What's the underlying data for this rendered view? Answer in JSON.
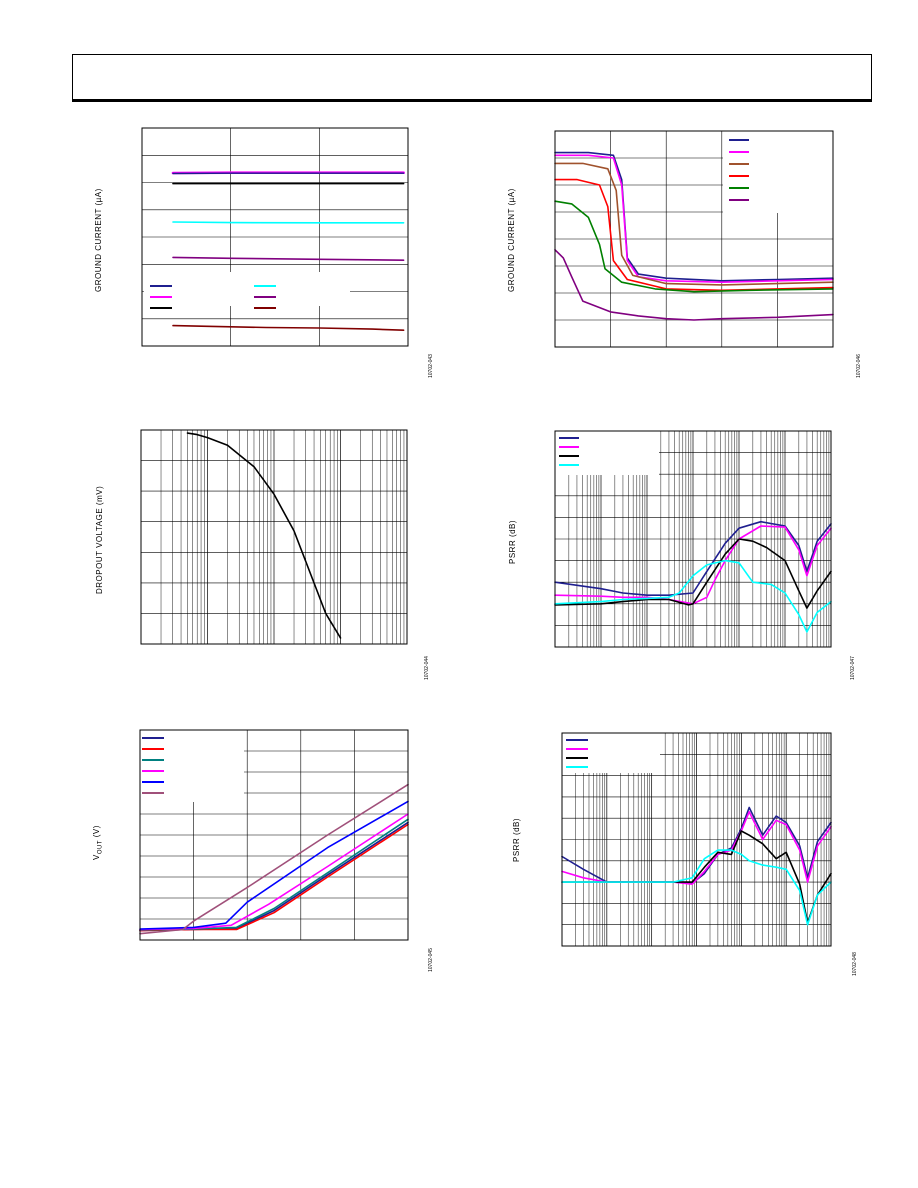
{
  "page": {
    "header_text": ""
  },
  "chart_data": [
    {
      "id": "c1",
      "type": "line",
      "ylabel": "GROUND CURRENT (µA)",
      "figure_id": "10702-043",
      "grid": true,
      "x_scale": "linear",
      "y_scale": "linear",
      "xlim": [
        0,
        3
      ],
      "ylim": [
        0,
        8
      ],
      "x_divisions": 3,
      "y_divisions": 8,
      "legend": {
        "placement": "lower-left",
        "columns": 2,
        "entries": [
          {
            "color": "#1f1f8f"
          },
          {
            "color": "#ff00ff"
          },
          {
            "color": "#000000"
          },
          {
            "color": "#00ffff"
          },
          {
            "color": "#800080"
          },
          {
            "color": "#800000"
          }
        ]
      },
      "series": [
        {
          "color": "#ff00ff",
          "width": 2.6,
          "x": [
            0.35,
            1.0,
            2.0,
            2.95
          ],
          "y": [
            6.35,
            6.36,
            6.36,
            6.36
          ]
        },
        {
          "color": "#1f1f8f",
          "width": 1.4,
          "x": [
            0.35,
            1.0,
            2.0,
            2.95
          ],
          "y": [
            6.33,
            6.34,
            6.34,
            6.34
          ]
        },
        {
          "color": "#000000",
          "width": 1.6,
          "x": [
            0.35,
            1.0,
            2.0,
            2.95
          ],
          "y": [
            5.96,
            5.96,
            5.96,
            5.96
          ]
        },
        {
          "color": "#00ffff",
          "width": 1.6,
          "x": [
            0.35,
            1.0,
            2.0,
            2.95
          ],
          "y": [
            4.55,
            4.53,
            4.52,
            4.52
          ]
        },
        {
          "color": "#800080",
          "width": 1.6,
          "x": [
            0.35,
            1.0,
            2.0,
            2.95
          ],
          "y": [
            3.25,
            3.22,
            3.18,
            3.15
          ]
        },
        {
          "color": "#800000",
          "width": 1.6,
          "x": [
            0.35,
            0.8,
            1.4,
            2.0,
            2.6,
            2.95
          ],
          "y": [
            0.75,
            0.72,
            0.68,
            0.66,
            0.62,
            0.58
          ]
        }
      ]
    },
    {
      "id": "c2",
      "type": "line",
      "ylabel": "GROUND CURRENT (µA)",
      "figure_id": "10702-046",
      "grid": true,
      "x_scale": "linear",
      "y_scale": "linear",
      "xlim": [
        0,
        5
      ],
      "ylim": [
        0,
        8
      ],
      "x_divisions": 5,
      "y_divisions": 8,
      "legend": {
        "placement": "top-right",
        "columns": 1,
        "entries": [
          {
            "color": "#1f1f8f"
          },
          {
            "color": "#ff00ff"
          },
          {
            "color": "#a0522d"
          },
          {
            "color": "#ff0000"
          },
          {
            "color": "#008000"
          },
          {
            "color": "#800080"
          }
        ]
      },
      "series": [
        {
          "color": "#1f1f8f",
          "width": 1.6,
          "x": [
            0,
            0.6,
            1.05,
            1.2,
            1.3,
            1.5,
            2.0,
            3.0,
            4.0,
            5.0
          ],
          "y": [
            7.2,
            7.2,
            7.1,
            6.2,
            3.3,
            2.7,
            2.55,
            2.45,
            2.5,
            2.55
          ]
        },
        {
          "color": "#ff00ff",
          "width": 1.6,
          "x": [
            0,
            0.6,
            1.05,
            1.2,
            1.3,
            1.5,
            2.0,
            3.0,
            4.0,
            5.0
          ],
          "y": [
            7.1,
            7.1,
            7.0,
            6.0,
            3.2,
            2.6,
            2.45,
            2.4,
            2.45,
            2.5
          ]
        },
        {
          "color": "#a0522d",
          "width": 1.6,
          "x": [
            0,
            0.5,
            0.95,
            1.1,
            1.2,
            1.4,
            2.0,
            3.0,
            4.0,
            5.0
          ],
          "y": [
            6.8,
            6.8,
            6.6,
            5.8,
            3.4,
            2.65,
            2.35,
            2.3,
            2.35,
            2.4
          ]
        },
        {
          "color": "#ff0000",
          "width": 1.6,
          "x": [
            0,
            0.4,
            0.8,
            0.95,
            1.05,
            1.3,
            2.0,
            3.0,
            4.0,
            5.0
          ],
          "y": [
            6.2,
            6.2,
            6.0,
            5.2,
            3.2,
            2.5,
            2.15,
            2.1,
            2.15,
            2.2
          ]
        },
        {
          "color": "#008000",
          "width": 1.6,
          "x": [
            0,
            0.3,
            0.6,
            0.8,
            0.9,
            1.2,
            1.8,
            2.5,
            3.5,
            5.0
          ],
          "y": [
            5.4,
            5.3,
            4.8,
            3.8,
            2.9,
            2.4,
            2.15,
            2.05,
            2.1,
            2.15
          ]
        },
        {
          "color": "#800080",
          "width": 1.6,
          "x": [
            0,
            0.15,
            0.3,
            0.5,
            1.0,
            1.5,
            2.0,
            2.5,
            3.0,
            4.0,
            5.0
          ],
          "y": [
            3.6,
            3.3,
            2.6,
            1.7,
            1.3,
            1.15,
            1.05,
            1.0,
            1.05,
            1.1,
            1.2
          ]
        }
      ]
    },
    {
      "id": "c3",
      "type": "line",
      "ylabel": "DROPOUT VOLTAGE (mV)",
      "figure_id": "10702-044",
      "grid": true,
      "x_scale": "log",
      "y_scale": "linear",
      "xlim": [
        0.1,
        1000
      ],
      "ylim": [
        0,
        7
      ],
      "x_decades": 4,
      "y_divisions": 7,
      "legend": null,
      "series": [
        {
          "color": "#000000",
          "width": 1.6,
          "x": [
            0.5,
            0.7,
            1.0,
            2.0,
            5.0,
            10,
            20,
            40,
            60,
            100
          ],
          "y": [
            6.9,
            6.85,
            6.75,
            6.5,
            5.8,
            4.9,
            3.7,
            2.0,
            1.0,
            0.2
          ]
        }
      ]
    },
    {
      "id": "c4",
      "type": "line",
      "ylabel": "PSRR (dB)",
      "figure_id": "10702-047",
      "grid": true,
      "x_scale": "log",
      "y_scale": "linear",
      "xlim": [
        10,
        10000000
      ],
      "ylim": [
        0,
        10
      ],
      "x_decades": 6,
      "y_divisions": 10,
      "legend": {
        "placement": "top-left",
        "columns": 1,
        "entries": [
          {
            "color": "#1f1f8f"
          },
          {
            "color": "#ff00ff"
          },
          {
            "color": "#000000"
          },
          {
            "color": "#00ffff"
          }
        ]
      },
      "series": [
        {
          "color": "#1f1f8f",
          "width": 1.6,
          "x": [
            10,
            100,
            300,
            1000,
            3000,
            10000,
            20000,
            50000,
            100000,
            300000,
            1000000,
            2000000,
            3000000,
            5000000,
            10000000
          ],
          "y": [
            3.0,
            2.7,
            2.5,
            2.4,
            2.4,
            2.5,
            3.5,
            4.8,
            5.5,
            5.8,
            5.6,
            4.7,
            3.5,
            4.9,
            5.7
          ]
        },
        {
          "color": "#ff00ff",
          "width": 1.6,
          "x": [
            10,
            100,
            300,
            1000,
            3000,
            10000,
            20000,
            30000,
            50000,
            100000,
            300000,
            1000000,
            2000000,
            3000000,
            5000000,
            10000000
          ],
          "y": [
            2.4,
            2.35,
            2.3,
            2.3,
            2.2,
            2.0,
            2.3,
            3.1,
            4.0,
            5.0,
            5.6,
            5.55,
            4.5,
            3.3,
            4.7,
            5.5
          ]
        },
        {
          "color": "#000000",
          "width": 1.6,
          "x": [
            10,
            100,
            300,
            1000,
            3000,
            8000,
            10000,
            20000,
            50000,
            100000,
            200000,
            400000,
            1000000,
            2000000,
            3000000,
            5000000,
            10000000
          ],
          "y": [
            1.95,
            2.0,
            2.1,
            2.2,
            2.2,
            1.95,
            2.0,
            3.0,
            4.3,
            5.0,
            4.9,
            4.6,
            4.0,
            2.6,
            1.8,
            2.6,
            3.5
          ]
        },
        {
          "color": "#00ffff",
          "width": 1.6,
          "x": [
            10,
            100,
            300,
            1000,
            3000,
            5000,
            10000,
            20000,
            50000,
            100000,
            200000,
            500000,
            1000000,
            2000000,
            3000000,
            5000000,
            10000000
          ],
          "y": [
            2.0,
            2.1,
            2.2,
            2.25,
            2.3,
            2.5,
            3.3,
            3.8,
            4.0,
            3.9,
            3.0,
            2.9,
            2.5,
            1.5,
            0.7,
            1.6,
            2.1
          ]
        }
      ]
    },
    {
      "id": "c5",
      "type": "line",
      "ylabel_main": "V",
      "ylabel_sub": "OUT",
      "ylabel_tail": " (V)",
      "figure_id": "10702-045",
      "grid": true,
      "x_scale": "linear",
      "y_scale": "linear",
      "xlim": [
        0,
        5
      ],
      "ylim": [
        0,
        10
      ],
      "x_divisions": 5,
      "y_divisions": 10,
      "legend": {
        "placement": "top-left",
        "columns": 1,
        "entries": [
          {
            "color": "#1f1f8f"
          },
          {
            "color": "#ff0000"
          },
          {
            "color": "#008080"
          },
          {
            "color": "#ff00ff"
          },
          {
            "color": "#0000ff"
          },
          {
            "color": "#a0507a"
          }
        ]
      },
      "series": [
        {
          "color": "#1f1f8f",
          "width": 1.6,
          "x": [
            0,
            1.0,
            1.8,
            2.5,
            3.5,
            5.0
          ],
          "y": [
            0.45,
            0.5,
            0.55,
            1.4,
            3.1,
            5.6
          ]
        },
        {
          "color": "#ff0000",
          "width": 1.6,
          "x": [
            0,
            1.0,
            1.8,
            2.5,
            3.5,
            5.0
          ],
          "y": [
            0.45,
            0.5,
            0.5,
            1.3,
            3.0,
            5.5
          ]
        },
        {
          "color": "#008080",
          "width": 1.6,
          "x": [
            0,
            1.0,
            1.8,
            2.5,
            3.5,
            5.0
          ],
          "y": [
            0.48,
            0.52,
            0.6,
            1.5,
            3.2,
            5.75
          ]
        },
        {
          "color": "#ff00ff",
          "width": 1.6,
          "x": [
            0,
            1.0,
            1.7,
            2.4,
            3.5,
            5.0
          ],
          "y": [
            0.5,
            0.55,
            0.7,
            1.7,
            3.5,
            6.0
          ]
        },
        {
          "color": "#0000ff",
          "width": 1.6,
          "x": [
            0,
            1.0,
            1.6,
            2.0,
            3.5,
            5.0
          ],
          "y": [
            0.52,
            0.6,
            0.8,
            1.8,
            4.4,
            6.6
          ]
        },
        {
          "color": "#a0507a",
          "width": 1.6,
          "x": [
            0,
            0.8,
            1.0,
            2.0,
            3.5,
            5.0
          ],
          "y": [
            0.3,
            0.5,
            0.9,
            2.5,
            5.0,
            7.4
          ]
        }
      ]
    },
    {
      "id": "c6",
      "type": "line",
      "ylabel": "PSRR (dB)",
      "figure_id": "10702-048",
      "grid": true,
      "x_scale": "log",
      "y_scale": "linear",
      "xlim": [
        10,
        10000000
      ],
      "ylim": [
        0,
        10
      ],
      "x_decades": 6,
      "y_divisions": 10,
      "legend": {
        "placement": "top-left",
        "columns": 1,
        "entries": [
          {
            "color": "#1f1f8f"
          },
          {
            "color": "#ff00ff"
          },
          {
            "color": "#000000"
          },
          {
            "color": "#00ffff"
          }
        ]
      },
      "series": [
        {
          "color": "#1f1f8f",
          "width": 1.6,
          "x": [
            10,
            30,
            100,
            300,
            1000,
            3000,
            8000,
            15000,
            30000,
            60000,
            100000,
            150000,
            300000,
            600000,
            1000000,
            2000000,
            3000000,
            5000000,
            10000000
          ],
          "y": [
            4.2,
            3.6,
            3.0,
            3.0,
            3.0,
            3.0,
            2.95,
            3.4,
            4.3,
            4.6,
            5.5,
            6.5,
            5.2,
            6.1,
            5.8,
            4.7,
            3.2,
            4.9,
            5.8
          ]
        },
        {
          "color": "#ff00ff",
          "width": 1.6,
          "x": [
            10,
            30,
            100,
            300,
            1000,
            3000,
            8000,
            15000,
            30000,
            60000,
            100000,
            150000,
            300000,
            600000,
            1000000,
            2000000,
            3000000,
            5000000,
            10000000
          ],
          "y": [
            3.5,
            3.2,
            3.0,
            3.0,
            3.0,
            3.0,
            2.9,
            3.5,
            4.3,
            4.5,
            5.4,
            6.3,
            5.0,
            5.9,
            5.7,
            4.5,
            3.0,
            4.7,
            5.6
          ]
        },
        {
          "color": "#000000",
          "width": 1.6,
          "x": [
            10,
            30,
            100,
            300,
            1000,
            3000,
            8000,
            15000,
            30000,
            60000,
            100000,
            150000,
            300000,
            600000,
            1000000,
            2000000,
            3000000,
            5000000,
            10000000
          ],
          "y": [
            3.0,
            3.0,
            3.0,
            3.0,
            3.0,
            3.0,
            3.0,
            3.7,
            4.4,
            4.3,
            5.4,
            5.2,
            4.8,
            4.1,
            4.4,
            2.9,
            1.1,
            2.4,
            3.4
          ]
        },
        {
          "color": "#00ffff",
          "width": 1.6,
          "x": [
            10,
            30,
            100,
            300,
            1000,
            3000,
            8000,
            15000,
            30000,
            60000,
            100000,
            150000,
            300000,
            600000,
            1000000,
            2000000,
            3000000,
            5000000,
            10000000
          ],
          "y": [
            3.0,
            3.0,
            3.0,
            3.0,
            3.0,
            3.0,
            3.2,
            4.1,
            4.5,
            4.5,
            4.3,
            4.0,
            3.8,
            3.7,
            3.6,
            2.6,
            1.0,
            2.4,
            3.0
          ]
        }
      ]
    }
  ]
}
